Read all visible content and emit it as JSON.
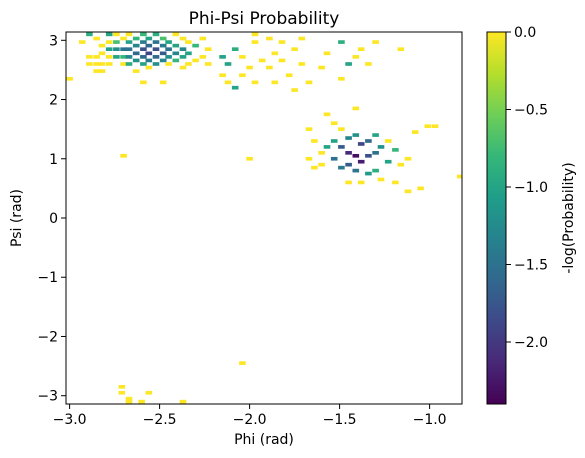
{
  "chart_data": {
    "type": "heatmap",
    "title": "Phi-Psi Probability",
    "xlabel": "Phi (rad)",
    "ylabel": "Psi (rad)",
    "colorbar_label": "-log(Probability)",
    "colormap": "viridis",
    "colormap_stops": [
      "#440154",
      "#482878",
      "#3e4989",
      "#31688e",
      "#26828e",
      "#1f9e89",
      "#35b779",
      "#6ece58",
      "#b5de2b",
      "#fde725"
    ],
    "xlim": [
      -3.02,
      -0.82
    ],
    "ylim": [
      -3.14,
      3.14
    ],
    "clim": [
      -2.4,
      0.0
    ],
    "bin_width": [
      0.0367,
      0.0616
    ],
    "grid": false,
    "x_ticks": [
      -3.0,
      -2.5,
      -2.0,
      -1.5,
      -1.0
    ],
    "x_tick_labels": [
      "−3.0",
      "−2.5",
      "−2.0",
      "−1.5",
      "−1.0"
    ],
    "y_ticks": [
      -3,
      -2,
      -1,
      0,
      1,
      2,
      3
    ],
    "y_tick_labels": [
      "−3",
      "−2",
      "−1",
      "0",
      "1",
      "2",
      "3"
    ],
    "colorbar_ticks": [
      0.0,
      -0.5,
      -1.0,
      -1.5,
      -2.0
    ],
    "colorbar_tick_labels": [
      "0.0",
      "−0.5",
      "−1.0",
      "−1.5",
      "−2.0"
    ],
    "points": [
      [
        -3.0,
        2.35,
        0
      ],
      [
        -2.93,
        2.97,
        0
      ],
      [
        -2.89,
        3.1,
        -0.9
      ],
      [
        -2.89,
        2.72,
        0
      ],
      [
        -2.89,
        2.6,
        0
      ],
      [
        -2.85,
        3.03,
        0
      ],
      [
        -2.85,
        2.72,
        0
      ],
      [
        -2.85,
        2.6,
        0
      ],
      [
        -2.85,
        2.48,
        0
      ],
      [
        -2.82,
        2.91,
        0
      ],
      [
        -2.82,
        2.78,
        0
      ],
      [
        -2.82,
        2.6,
        0
      ],
      [
        -2.82,
        2.48,
        0
      ],
      [
        -2.78,
        3.1,
        -1
      ],
      [
        -2.78,
        2.97,
        0
      ],
      [
        -2.78,
        2.85,
        -1
      ],
      [
        -2.78,
        2.72,
        0
      ],
      [
        -2.78,
        2.6,
        0
      ],
      [
        -2.74,
        3.1,
        0
      ],
      [
        -2.74,
        2.97,
        -0.7
      ],
      [
        -2.74,
        2.85,
        -1.2
      ],
      [
        -2.74,
        2.72,
        -1
      ],
      [
        -2.7,
        3.03,
        0
      ],
      [
        -2.7,
        2.85,
        -1.5
      ],
      [
        -2.7,
        2.72,
        -0.8
      ],
      [
        -2.7,
        2.6,
        0
      ],
      [
        -2.7,
        1.05,
        0
      ],
      [
        -2.67,
        3.1,
        0
      ],
      [
        -2.67,
        2.97,
        -1
      ],
      [
        -2.67,
        2.85,
        -1.5
      ],
      [
        -2.67,
        2.72,
        -1.3
      ],
      [
        -2.67,
        2.6,
        -0.9
      ],
      [
        -2.63,
        3.03,
        -0.8
      ],
      [
        -2.63,
        2.91,
        -1.3
      ],
      [
        -2.63,
        2.78,
        -1.6
      ],
      [
        -2.63,
        2.66,
        -1.2
      ],
      [
        -2.63,
        2.48,
        0
      ],
      [
        -2.59,
        3.1,
        -0.8
      ],
      [
        -2.59,
        2.97,
        -1.4
      ],
      [
        -2.59,
        2.85,
        -1.8
      ],
      [
        -2.59,
        2.72,
        -1.6
      ],
      [
        -2.59,
        2.6,
        -1
      ],
      [
        -2.59,
        2.29,
        0
      ],
      [
        -2.56,
        3.03,
        -1
      ],
      [
        -2.56,
        2.91,
        -1.6
      ],
      [
        -2.56,
        2.78,
        -1.9
      ],
      [
        -2.56,
        2.66,
        -1.4
      ],
      [
        -2.56,
        2.54,
        0
      ],
      [
        -2.52,
        3.1,
        -0.9
      ],
      [
        -2.52,
        2.97,
        -1.5
      ],
      [
        -2.52,
        2.85,
        -1.8
      ],
      [
        -2.52,
        2.72,
        -1.6
      ],
      [
        -2.52,
        2.6,
        -1.2
      ],
      [
        -2.48,
        3.03,
        -0.7
      ],
      [
        -2.48,
        2.91,
        -1.4
      ],
      [
        -2.48,
        2.78,
        -1.7
      ],
      [
        -2.48,
        2.66,
        -1.3
      ],
      [
        -2.48,
        2.29,
        0
      ],
      [
        -2.45,
        2.97,
        -1
      ],
      [
        -2.45,
        2.85,
        -1.5
      ],
      [
        -2.45,
        2.72,
        -1.2
      ],
      [
        -2.45,
        2.6,
        0
      ],
      [
        -2.41,
        3.1,
        0
      ],
      [
        -2.41,
        2.91,
        -1
      ],
      [
        -2.41,
        2.78,
        -1.3
      ],
      [
        -2.41,
        2.66,
        -0.8
      ],
      [
        -2.37,
        3.03,
        0
      ],
      [
        -2.37,
        2.85,
        -1.3
      ],
      [
        -2.37,
        2.72,
        -1
      ],
      [
        -2.37,
        2.54,
        0
      ],
      [
        -2.34,
        2.97,
        0
      ],
      [
        -2.34,
        2.78,
        -1
      ],
      [
        -2.34,
        2.6,
        0
      ],
      [
        -2.3,
        2.91,
        -0.8
      ],
      [
        -2.3,
        2.66,
        0
      ],
      [
        -2.26,
        3.03,
        0
      ],
      [
        -2.26,
        2.72,
        0
      ],
      [
        -2.23,
        2.85,
        0
      ],
      [
        -2.23,
        2.6,
        0
      ],
      [
        -2.15,
        2.72,
        -1
      ],
      [
        -2.15,
        2.41,
        0
      ],
      [
        -2.12,
        2.6,
        -1
      ],
      [
        -2.12,
        2.29,
        0
      ],
      [
        -2.08,
        2.85,
        -0.9
      ],
      [
        -2.08,
        2.2,
        -1
      ],
      [
        -2.04,
        2.72,
        0
      ],
      [
        -2.04,
        2.41,
        0
      ],
      [
        -2.0,
        2.54,
        0
      ],
      [
        -2.0,
        1.0,
        0
      ],
      [
        -1.97,
        3.1,
        0
      ],
      [
        -1.97,
        2.97,
        0
      ],
      [
        -1.97,
        2.29,
        0
      ],
      [
        -1.93,
        2.66,
        0
      ],
      [
        -1.89,
        3.03,
        0
      ],
      [
        -1.89,
        2.54,
        0
      ],
      [
        -1.86,
        2.78,
        0
      ],
      [
        -1.86,
        2.29,
        0
      ],
      [
        -1.82,
        2.97,
        0
      ],
      [
        -1.82,
        2.66,
        0
      ],
      [
        -1.78,
        2.41,
        0
      ],
      [
        -1.75,
        2.85,
        0
      ],
      [
        -1.75,
        2.16,
        0
      ],
      [
        -1.71,
        3.03,
        0
      ],
      [
        -1.71,
        2.6,
        0
      ],
      [
        -1.67,
        2.29,
        0
      ],
      [
        -1.67,
        1.5,
        0
      ],
      [
        -1.67,
        1.0,
        0
      ],
      [
        -1.64,
        1.3,
        0
      ],
      [
        -1.64,
        0.85,
        0
      ],
      [
        -1.6,
        2.54,
        0
      ],
      [
        -1.6,
        1.1,
        0
      ],
      [
        -1.6,
        0.9,
        0
      ],
      [
        -1.57,
        2.78,
        0
      ],
      [
        -1.57,
        1.75,
        0
      ],
      [
        -1.57,
        1.2,
        -1
      ],
      [
        -1.53,
        1.6,
        0
      ],
      [
        -1.53,
        1.3,
        -1
      ],
      [
        -1.53,
        1.0,
        -1.5
      ],
      [
        -1.49,
        2.97,
        -0.9
      ],
      [
        -1.49,
        2.35,
        0
      ],
      [
        -1.49,
        1.5,
        0
      ],
      [
        -1.49,
        1.2,
        -1.7
      ],
      [
        -1.49,
        0.85,
        -1.4
      ],
      [
        -1.45,
        2.6,
        -1
      ],
      [
        -1.45,
        1.35,
        -1.3
      ],
      [
        -1.45,
        1.1,
        -2.1
      ],
      [
        -1.45,
        0.9,
        -1.7
      ],
      [
        -1.45,
        0.6,
        0
      ],
      [
        -1.41,
        2.72,
        0
      ],
      [
        -1.41,
        1.85,
        0
      ],
      [
        -1.41,
        1.4,
        -1.2
      ],
      [
        -1.41,
        1.05,
        -2.3
      ],
      [
        -1.41,
        0.8,
        -1.5
      ],
      [
        -1.38,
        2.85,
        0
      ],
      [
        -1.38,
        1.25,
        -1.9
      ],
      [
        -1.38,
        0.95,
        -2.2
      ],
      [
        -1.38,
        0.6,
        0
      ],
      [
        -1.34,
        2.6,
        0
      ],
      [
        -1.34,
        1.3,
        -1.6
      ],
      [
        -1.34,
        1.05,
        -1.8
      ],
      [
        -1.34,
        0.75,
        -1.1
      ],
      [
        -1.3,
        2.97,
        0
      ],
      [
        -1.3,
        1.4,
        -1
      ],
      [
        -1.3,
        1.1,
        -1.5
      ],
      [
        -1.3,
        0.8,
        -0.9
      ],
      [
        -1.27,
        1.2,
        -1.2
      ],
      [
        -1.27,
        0.65,
        0
      ],
      [
        -1.23,
        1.3,
        0
      ],
      [
        -1.23,
        0.95,
        -1
      ],
      [
        -1.19,
        1.15,
        -0.8
      ],
      [
        -1.19,
        0.6,
        0
      ],
      [
        -1.16,
        2.85,
        0
      ],
      [
        -1.16,
        0.9,
        0
      ],
      [
        -1.12,
        1.0,
        0
      ],
      [
        -1.12,
        0.45,
        0
      ],
      [
        -1.08,
        1.45,
        0
      ],
      [
        -1.05,
        0.5,
        0
      ],
      [
        -1.01,
        1.55,
        0
      ],
      [
        -0.97,
        1.55,
        0
      ],
      [
        -0.83,
        0.7,
        0
      ],
      [
        -2.71,
        -2.85,
        0
      ],
      [
        -2.71,
        -2.95,
        0
      ],
      [
        -2.67,
        -3.05,
        0
      ],
      [
        -2.67,
        -3.1,
        0
      ],
      [
        -2.6,
        -3.1,
        0
      ],
      [
        -2.56,
        -2.95,
        0
      ],
      [
        -2.37,
        -3.1,
        0
      ],
      [
        -2.04,
        -2.45,
        0
      ]
    ]
  }
}
